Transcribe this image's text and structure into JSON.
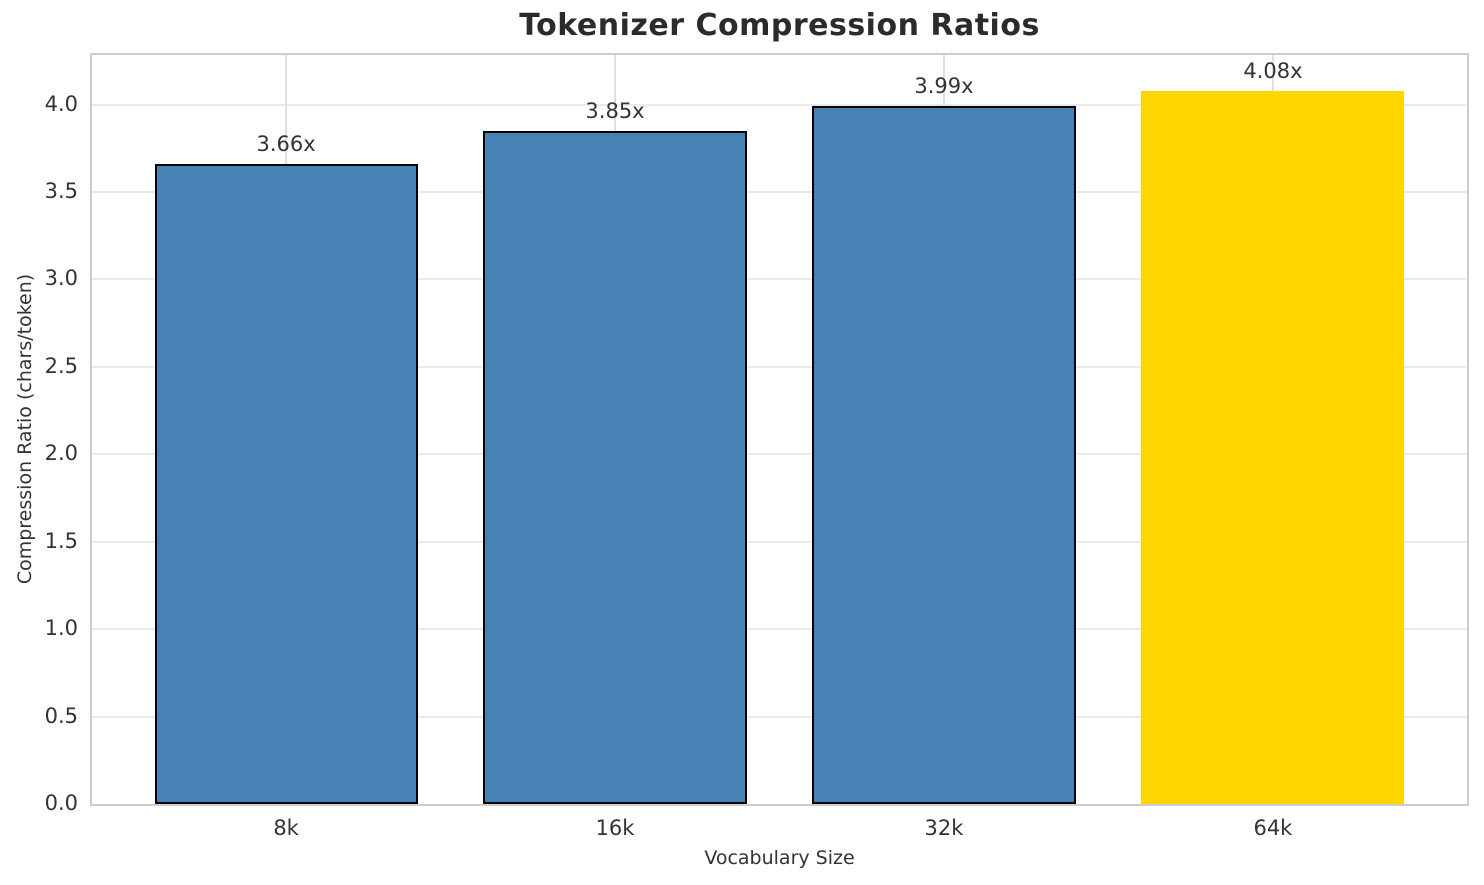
{
  "chart_data": {
    "type": "bar",
    "title": "Tokenizer Compression Ratios",
    "xlabel": "Vocabulary Size",
    "ylabel": "Compression Ratio (chars/token)",
    "categories": [
      "8k",
      "16k",
      "32k",
      "64k"
    ],
    "values": [
      3.66,
      3.85,
      3.99,
      4.08
    ],
    "bar_labels": [
      "3.66x",
      "3.85x",
      "3.99x",
      "4.08x"
    ],
    "bar_colors": [
      "#4682B4",
      "#4682B4",
      "#4682B4",
      "#FFD700"
    ],
    "bar_edge_colors": [
      "#000000",
      "#000000",
      "#000000",
      "#FFD700"
    ],
    "ylim": [
      0,
      4.284
    ],
    "yticks": [
      0.0,
      0.5,
      1.0,
      1.5,
      2.0,
      2.5,
      3.0,
      3.5,
      4.0
    ],
    "ytick_labels": [
      "0.0",
      "0.5",
      "1.0",
      "1.5",
      "2.0",
      "2.5",
      "3.0",
      "3.5",
      "4.0"
    ],
    "grid": true,
    "grid_axis": "both",
    "legend_position": "none",
    "colors": {
      "background": "#ffffff",
      "horizontal_grid": "#ebebeb",
      "vertical_grid": "#e0e0e0",
      "spine": "#cdcdcd",
      "tick_text": "#333333",
      "title_text": "#2b2b2b",
      "bar_blue": "#4682B4",
      "bar_gold": "#FFD700",
      "bar_edge": "#000000"
    }
  }
}
